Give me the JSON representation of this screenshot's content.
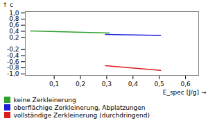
{
  "chart_data": {
    "type": "line",
    "title": "",
    "xlabel": "E_spec [J/g]",
    "ylabel": "c",
    "xlim": [
      -0.01,
      0.65
    ],
    "ylim": [
      -1.05,
      1.05
    ],
    "xticks": [
      {
        "value": 0.1,
        "label": "0,1"
      },
      {
        "value": 0.2,
        "label": "0,2"
      },
      {
        "value": 0.3,
        "label": "0,3"
      },
      {
        "value": 0.4,
        "label": "0,4"
      },
      {
        "value": 0.5,
        "label": "0,5"
      },
      {
        "value": 0.6,
        "label": "0,6"
      }
    ],
    "yticks": [
      {
        "value": -1.0,
        "label": "-1,0"
      },
      {
        "value": -0.8,
        "label": "-0,8"
      },
      {
        "value": -0.6,
        "label": "-0,6"
      },
      {
        "value": -0.4,
        "label": "-0,4"
      },
      {
        "value": -0.2,
        "label": "-0,2"
      },
      {
        "value": 0.2,
        "label": "0,2"
      },
      {
        "value": 0.4,
        "label": "0,4"
      },
      {
        "value": 0.6,
        "label": "0,6"
      },
      {
        "value": 0.8,
        "label": "0,8"
      },
      {
        "value": 1.0,
        "label": "1,0"
      }
    ],
    "series": [
      {
        "name": "keine Zerkleinerung",
        "color": "#2da02d",
        "x": [
          0.01,
          0.31
        ],
        "values": [
          0.41,
          0.345
        ]
      },
      {
        "name": "oberflächige Zerkleinerung, Abplatzungen",
        "color": "#1c1cdd",
        "x": [
          0.295,
          0.505
        ],
        "values": [
          0.295,
          0.265
        ]
      },
      {
        "name": "vollständige Zerkleinerung (durchdringend)",
        "color": "#dd1c1c",
        "x": [
          0.295,
          0.505
        ],
        "values": [
          -0.73,
          -0.885
        ]
      }
    ],
    "grid": false,
    "legend": "bottom"
  }
}
